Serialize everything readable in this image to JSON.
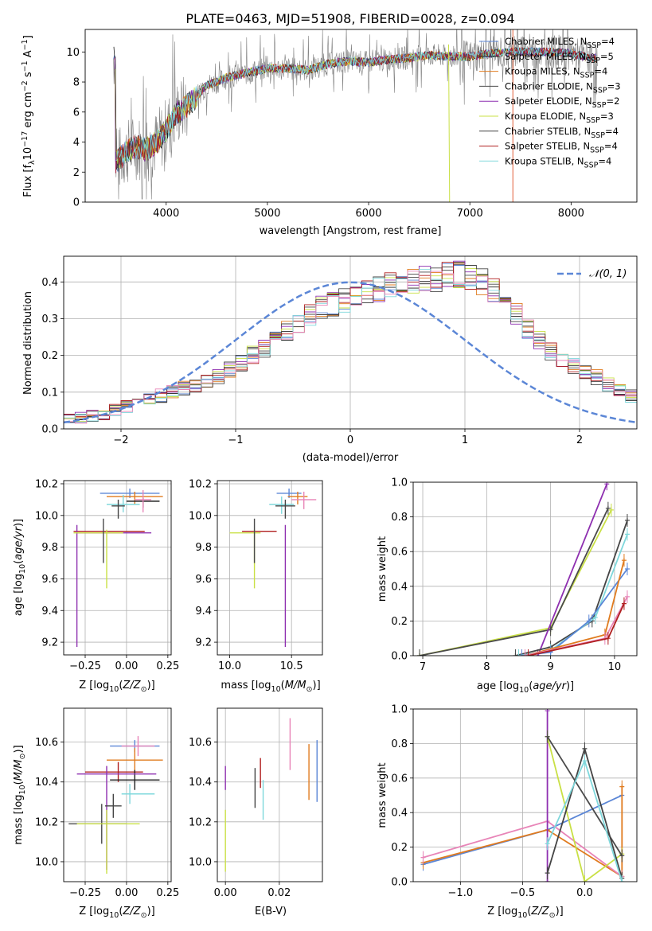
{
  "colors": {
    "Chabrier MILES": "#5b86d6",
    "Salpeter MILES": "#1f1f1f",
    "Kroupa MILES": "#e07b1f",
    "Chabrier ELODIE": "#4a4a4a",
    "Salpeter ELODIE": "#8e2fb0",
    "Kroupa ELODIE": "#c9e045",
    "Chabrier STELIB": "#444444",
    "Salpeter STELIB": "#b01f1f",
    "Kroupa STELIB": "#7fd8dc",
    "pink": "#e885b8",
    "gaussian": "#5b86d6",
    "grid": "#b0b0b0"
  },
  "chart_data": [
    {
      "id": "spectrum",
      "type": "line",
      "title": "PLATE=0463, MJD=51908, FIBERID=0028, z=0.094",
      "xlabel": "wavelength [Angstrom, rest frame]",
      "ylabel": "Flux [fλ10⁻¹⁷ erg cm⁻² s⁻¹ A⁻¹]",
      "xlim": [
        3200,
        8650
      ],
      "ylim": [
        0,
        11.5
      ],
      "xticks": [
        4000,
        5000,
        6000,
        7000,
        8000
      ],
      "yticks": [
        0,
        2,
        4,
        6,
        8,
        10
      ],
      "grid": false,
      "legend_position": "top-right",
      "legend": [
        {
          "label": "Chabrier MILES, N_SSP=4",
          "color": "#5b86d6"
        },
        {
          "label": "Salpeter MILES, N_SSP=5",
          "color": "#1f1f1f"
        },
        {
          "label": "Kroupa MILES, N_SSP=4",
          "color": "#e07b1f"
        },
        {
          "label": "Chabrier ELODIE, N_SSP=3",
          "color": "#4a4a4a"
        },
        {
          "label": "Salpeter ELODIE, N_SSP=2",
          "color": "#8e2fb0"
        },
        {
          "label": "Kroupa ELODIE, N_SSP=3",
          "color": "#c9e045"
        },
        {
          "label": "Chabrier STELIB, N_SSP=4",
          "color": "#444444"
        },
        {
          "label": "Salpeter STELIB, N_SSP=4",
          "color": "#b01f1f"
        },
        {
          "label": "Kroupa STELIB, N_SSP=4",
          "color": "#7fd8dc"
        }
      ],
      "model_continuum": {
        "x": [
          3500,
          3600,
          3700,
          3800,
          3900,
          4000,
          4100,
          4200,
          4300,
          4400,
          4500,
          4600,
          4800,
          5000,
          5200,
          5400,
          5600,
          5800,
          6000,
          6200,
          6400,
          6600,
          6800,
          7000,
          7200,
          7400,
          7600,
          7800,
          8000,
          8200
        ],
        "y": [
          2.6,
          3.3,
          3.7,
          3.5,
          3.9,
          4.8,
          5.9,
          6.4,
          7.0,
          7.8,
          8.0,
          8.3,
          8.6,
          8.9,
          8.9,
          8.8,
          9.2,
          9.4,
          9.3,
          9.5,
          9.6,
          9.8,
          9.7,
          9.7,
          9.9,
          10.0,
          10.0,
          10.0,
          9.9,
          9.6
        ]
      }
    },
    {
      "id": "residuals",
      "type": "line",
      "xlabel": "(data-model)/error",
      "ylabel": "Normed distribution",
      "xlim": [
        -2.5,
        2.5
      ],
      "ylim": [
        0,
        0.47
      ],
      "xticks": [
        -2,
        -1,
        0,
        1,
        2
      ],
      "xtick_labels": [
        "−2",
        "−1",
        "0",
        "1",
        "2"
      ],
      "yticks": [
        0,
        0.1,
        0.2,
        0.3,
        0.4
      ],
      "ytick_labels": [
        "0.0",
        "0.1",
        "0.2",
        "0.3",
        "0.4"
      ],
      "grid": true,
      "legend_position": "top-right",
      "legend": [
        {
          "label": "𝒩(0, 1)",
          "color": "#5b86d6",
          "style": "dashed"
        }
      ],
      "bin_width": 0.1,
      "bin_start": -2.5,
      "histogram_mean": [
        0.025,
        0.03,
        0.035,
        0.04,
        0.05,
        0.06,
        0.07,
        0.08,
        0.09,
        0.1,
        0.11,
        0.12,
        0.13,
        0.14,
        0.16,
        0.18,
        0.2,
        0.22,
        0.24,
        0.27,
        0.29,
        0.31,
        0.33,
        0.34,
        0.35,
        0.36,
        0.37,
        0.38,
        0.39,
        0.39,
        0.4,
        0.41,
        0.41,
        0.42,
        0.42,
        0.41,
        0.4,
        0.38,
        0.35,
        0.31,
        0.27,
        0.24,
        0.21,
        0.19,
        0.17,
        0.15,
        0.14,
        0.12,
        0.11,
        0.09
      ]
    },
    {
      "id": "age-vs-Z",
      "type": "scatter",
      "xlabel": "Z [log10(Z/Z⊙)]",
      "ylabel": "age  [log10(age/yr)]",
      "xlim": [
        -0.38,
        0.27
      ],
      "ylim": [
        9.12,
        10.22
      ],
      "xticks": [
        -0.25,
        0,
        0.25
      ],
      "xtick_labels": [
        "−0.25",
        "0.00",
        "0.25"
      ],
      "yticks": [
        9.2,
        9.4,
        9.6,
        9.8,
        10.0,
        10.2
      ],
      "ytick_labels": [
        "9.2",
        "9.4",
        "9.6",
        "9.8",
        "10.0",
        "10.2"
      ],
      "grid": true,
      "points": [
        {
          "x": 0.02,
          "y": 10.14,
          "xerr": [
            0.18,
            0.18
          ],
          "yerr": [
            0.03,
            0.03
          ],
          "color": "#5b86d6"
        },
        {
          "x": 0.05,
          "y": 10.12,
          "xerr": [
            0.17,
            0.17
          ],
          "yerr": [
            0.05,
            0.03
          ],
          "color": "#e07b1f"
        },
        {
          "x": 0.1,
          "y": 10.09,
          "xerr": [
            0.1,
            0.1
          ],
          "yerr": [
            0.04,
            0.02
          ],
          "color": "#1f1f1f"
        },
        {
          "x": 0.1,
          "y": 10.1,
          "xerr": [
            0.05,
            0.05
          ],
          "yerr": [
            0.08,
            0.06
          ],
          "color": "#e885b8"
        },
        {
          "x": -0.02,
          "y": 10.07,
          "xerr": [
            0.1,
            0.1
          ],
          "yerr": [
            0.05,
            0.06
          ],
          "color": "#7fd8dc"
        },
        {
          "x": -0.05,
          "y": 10.06,
          "xerr": [
            0.04,
            0.04
          ],
          "yerr": [
            0.08,
            0.04
          ],
          "color": "#444444"
        },
        {
          "x": -0.07,
          "y": 9.9,
          "xerr": [
            0.25,
            0.18
          ],
          "yerr": [
            0.0,
            0.0
          ],
          "color": "#b01f1f"
        },
        {
          "x": -0.3,
          "y": 9.89,
          "xerr": [
            0.0,
            0.45
          ],
          "yerr": [
            0.72,
            0.05
          ],
          "color": "#8e2fb0"
        },
        {
          "x": -0.12,
          "y": 9.89,
          "xerr": [
            0.2,
            0.1
          ],
          "yerr": [
            0.35,
            0.02
          ],
          "color": "#c9e045"
        },
        {
          "x": -0.14,
          "y": 9.9,
          "xerr": [
            0.0,
            0.0
          ],
          "yerr": [
            0.2,
            0.08
          ],
          "color": "#4a4a4a"
        }
      ]
    },
    {
      "id": "age-vs-mass",
      "type": "scatter",
      "xlabel": "mass [log10(M/M⊙)]",
      "ylabel": "",
      "xlim": [
        9.9,
        10.75
      ],
      "ylim": [
        9.12,
        10.22
      ],
      "xticks": [
        10.0,
        10.5
      ],
      "xtick_labels": [
        "10.0",
        "10.5"
      ],
      "yticks": [
        9.2,
        9.4,
        9.6,
        9.8,
        10.0,
        10.2
      ],
      "ytick_labels": [
        "9.2",
        "9.4",
        "9.6",
        "9.8",
        "10.0",
        "10.2"
      ],
      "grid": true,
      "points": [
        {
          "x": 10.48,
          "y": 10.14,
          "xerr": [
            0.1,
            0.1
          ],
          "yerr": [
            0.03,
            0.03
          ],
          "color": "#5b86d6"
        },
        {
          "x": 10.55,
          "y": 10.12,
          "xerr": [
            0.08,
            0.08
          ],
          "yerr": [
            0.05,
            0.03
          ],
          "color": "#e07b1f"
        },
        {
          "x": 10.6,
          "y": 10.1,
          "xerr": [
            0.1,
            0.1
          ],
          "yerr": [
            0.06,
            0.05
          ],
          "color": "#e885b8"
        },
        {
          "x": 10.42,
          "y": 10.07,
          "xerr": [
            0.1,
            0.1
          ],
          "yerr": [
            0.06,
            0.05
          ],
          "color": "#7fd8dc"
        },
        {
          "x": 10.45,
          "y": 10.06,
          "xerr": [
            0.08,
            0.08
          ],
          "yerr": [
            0.08,
            0.04
          ],
          "color": "#444444"
        },
        {
          "x": 10.28,
          "y": 9.9,
          "xerr": [
            0.18,
            0.1
          ],
          "yerr": [
            0.0,
            0.0
          ],
          "color": "#b01f1f"
        },
        {
          "x": 10.45,
          "y": 9.89,
          "xerr": [
            0.0,
            0.0
          ],
          "yerr": [
            0.72,
            0.05
          ],
          "color": "#8e2fb0"
        },
        {
          "x": 10.2,
          "y": 9.89,
          "xerr": [
            0.2,
            0.05
          ],
          "yerr": [
            0.35,
            0.02
          ],
          "color": "#c9e045"
        },
        {
          "x": 10.2,
          "y": 9.9,
          "xerr": [
            0.0,
            0.0
          ],
          "yerr": [
            0.2,
            0.08
          ],
          "color": "#4a4a4a"
        }
      ]
    },
    {
      "id": "weight-vs-age",
      "type": "line",
      "xlabel": "age  [log10(age/yr)]",
      "ylabel": "mass weight",
      "xlim": [
        6.85,
        10.35
      ],
      "ylim": [
        0,
        1.0
      ],
      "xticks": [
        7,
        8,
        9,
        10
      ],
      "xtick_labels": [
        "7",
        "8",
        "9",
        "10"
      ],
      "yticks": [
        0,
        0.2,
        0.4,
        0.6,
        0.8,
        1.0
      ],
      "ytick_labels": [
        "0.0",
        "0.2",
        "0.4",
        "0.6",
        "0.8",
        "1.0"
      ],
      "grid": true,
      "series": [
        {
          "color": "#c9e045",
          "x": [
            6.95,
            9.0,
            9.95
          ],
          "y": [
            0.0,
            0.16,
            0.84
          ]
        },
        {
          "color": "#4a4a4a",
          "x": [
            6.95,
            9.0,
            9.9
          ],
          "y": [
            0.0,
            0.15,
            0.85
          ]
        },
        {
          "color": "#8e2fb0",
          "x": [
            8.8,
            9.88
          ],
          "y": [
            0.0,
            0.99
          ]
        },
        {
          "color": "#444444",
          "x": [
            8.45,
            9.0,
            9.65,
            10.2
          ],
          "y": [
            0.0,
            0.05,
            0.2,
            0.78
          ]
        },
        {
          "color": "#7fd8dc",
          "x": [
            8.5,
            9.0,
            9.7,
            10.2
          ],
          "y": [
            0.0,
            0.03,
            0.22,
            0.7
          ]
        },
        {
          "color": "#5b86d6",
          "x": [
            8.55,
            9.0,
            9.6,
            10.2
          ],
          "y": [
            0.0,
            0.02,
            0.2,
            0.5
          ]
        },
        {
          "color": "#e07b1f",
          "x": [
            8.6,
            9.85,
            10.15
          ],
          "y": [
            0.0,
            0.12,
            0.55
          ]
        },
        {
          "color": "#e885b8",
          "x": [
            8.6,
            9.85,
            10.2
          ],
          "y": [
            0.0,
            0.1,
            0.34
          ]
        },
        {
          "color": "#b01f1f",
          "x": [
            8.65,
            9.9,
            10.15
          ],
          "y": [
            0.0,
            0.1,
            0.3
          ]
        }
      ]
    },
    {
      "id": "mass-vs-Z",
      "type": "scatter",
      "xlabel": "Z [log10(Z/Z⊙)]",
      "ylabel": "mass [log10(M/M⊙)]",
      "xlim": [
        -0.38,
        0.27
      ],
      "ylim": [
        9.9,
        10.77
      ],
      "xticks": [
        -0.25,
        0,
        0.25
      ],
      "xtick_labels": [
        "−0.25",
        "0.00",
        "0.25"
      ],
      "yticks": [
        10.0,
        10.2,
        10.4,
        10.6
      ],
      "ytick_labels": [
        "10.0",
        "10.2",
        "10.4",
        "10.6"
      ],
      "grid": true,
      "points": [
        {
          "x": 0.05,
          "y": 10.58,
          "xerr": [
            0.15,
            0.15
          ],
          "yerr": [
            0.03,
            0.03
          ],
          "color": "#5b86d6"
        },
        {
          "x": 0.07,
          "y": 10.58,
          "xerr": [
            0.1,
            0.1
          ],
          "yerr": [
            0.05,
            0.05
          ],
          "color": "#e885b8"
        },
        {
          "x": 0.05,
          "y": 10.51,
          "xerr": [
            0.17,
            0.17
          ],
          "yerr": [
            0.06,
            0.06
          ],
          "color": "#e07b1f"
        },
        {
          "x": -0.05,
          "y": 10.45,
          "xerr": [
            0.2,
            0.15
          ],
          "yerr": [
            0.05,
            0.05
          ],
          "color": "#b01f1f"
        },
        {
          "x": 0.05,
          "y": 10.41,
          "xerr": [
            0.15,
            0.15
          ],
          "yerr": [
            0.05,
            0.05
          ],
          "color": "#1f1f1f"
        },
        {
          "x": -0.12,
          "y": 10.44,
          "xerr": [
            0.18,
            0.3
          ],
          "yerr": [
            0.48,
            0.04
          ],
          "color": "#8e2fb0"
        },
        {
          "x": 0.02,
          "y": 10.34,
          "xerr": [
            0.05,
            0.15
          ],
          "yerr": [
            0.05,
            0.05
          ],
          "color": "#7fd8dc"
        },
        {
          "x": -0.08,
          "y": 10.28,
          "xerr": [
            0.05,
            0.05
          ],
          "yerr": [
            0.06,
            0.06
          ],
          "color": "#444444"
        },
        {
          "x": -0.15,
          "y": 10.19,
          "xerr": [
            0.2,
            0.15
          ],
          "yerr": [
            0.1,
            0.1
          ],
          "color": "#4a4a4a"
        },
        {
          "x": -0.12,
          "y": 10.19,
          "xerr": [
            0.18,
            0.2
          ],
          "yerr": [
            0.25,
            0.07
          ],
          "color": "#c9e045"
        }
      ]
    },
    {
      "id": "mass-vs-EBV",
      "type": "scatter",
      "xlabel": "E(B-V)",
      "ylabel": "",
      "xlim": [
        -0.003,
        0.036
      ],
      "ylim": [
        9.9,
        10.77
      ],
      "xticks": [
        0.0,
        0.02
      ],
      "xtick_labels": [
        "0.00",
        "0.02"
      ],
      "yticks": [
        10.0,
        10.2,
        10.4,
        10.6
      ],
      "ytick_labels": [
        "10.0",
        "10.2",
        "10.4",
        "10.6"
      ],
      "grid": true,
      "points": [
        {
          "x": 0.0,
          "y": 10.41,
          "yerr": [
            0.05,
            0.07
          ],
          "color": "#8e2fb0"
        },
        {
          "x": 0.0,
          "y": 10.13,
          "yerr": [
            0.18,
            0.13
          ],
          "color": "#c9e045"
        },
        {
          "x": 0.011,
          "y": 10.37,
          "yerr": [
            0.1,
            0.1
          ],
          "color": "#444444"
        },
        {
          "x": 0.013,
          "y": 10.42,
          "yerr": [
            0.05,
            0.1
          ],
          "color": "#b01f1f"
        },
        {
          "x": 0.014,
          "y": 10.31,
          "yerr": [
            0.1,
            0.1
          ],
          "color": "#7fd8dc"
        },
        {
          "x": 0.024,
          "y": 10.59,
          "yerr": [
            0.13,
            0.13
          ],
          "color": "#e885b8"
        },
        {
          "x": 0.031,
          "y": 10.44,
          "yerr": [
            0.13,
            0.15
          ],
          "color": "#e07b1f"
        },
        {
          "x": 0.034,
          "y": 10.45,
          "yerr": [
            0.15,
            0.16
          ],
          "color": "#5b86d6"
        }
      ]
    },
    {
      "id": "weight-vs-Z",
      "type": "line",
      "xlabel": "Z [log10(Z/Z⊙)]",
      "ylabel": "mass weight",
      "xlim": [
        -1.38,
        0.42
      ],
      "ylim": [
        0,
        1.0
      ],
      "xticks": [
        -1.0,
        -0.5,
        0.0
      ],
      "xtick_labels": [
        "−1.0",
        "−0.5",
        "0.0"
      ],
      "yticks": [
        0,
        0.2,
        0.4,
        0.6,
        0.8,
        1.0
      ],
      "ytick_labels": [
        "0.0",
        "0.2",
        "0.4",
        "0.6",
        "0.8",
        "1.0"
      ],
      "grid": true,
      "series": [
        {
          "color": "#5b86d6",
          "x": [
            -1.3,
            -0.3,
            0.3
          ],
          "y": [
            0.1,
            0.3,
            0.5
          ]
        },
        {
          "color": "#e07b1f",
          "x": [
            -1.3,
            -0.3,
            0.3,
            0.3
          ],
          "y": [
            0.11,
            0.3,
            0.03,
            0.55
          ]
        },
        {
          "color": "#e885b8",
          "x": [
            -1.3,
            -0.3,
            0.3
          ],
          "y": [
            0.14,
            0.35,
            0.03
          ]
        },
        {
          "color": "#8e2fb0",
          "x": [
            -0.3,
            -0.3
          ],
          "y": [
            0.0,
            0.99
          ]
        },
        {
          "color": "#c9e045",
          "x": [
            -0.3,
            0.0,
            0.3
          ],
          "y": [
            0.84,
            0.0,
            0.16
          ]
        },
        {
          "color": "#4a4a4a",
          "x": [
            -0.3,
            0.3
          ],
          "y": [
            0.84,
            0.15
          ]
        },
        {
          "color": "#444444",
          "x": [
            -0.3,
            0.0,
            0.3
          ],
          "y": [
            0.05,
            0.77,
            0.02
          ]
        },
        {
          "color": "#7fd8dc",
          "x": [
            -0.3,
            0.0,
            0.3
          ],
          "y": [
            0.22,
            0.7,
            0.0
          ]
        }
      ]
    }
  ]
}
